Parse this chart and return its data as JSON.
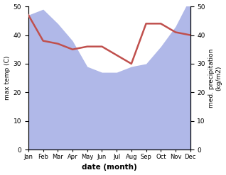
{
  "months": [
    "Jan",
    "Feb",
    "Mar",
    "Apr",
    "May",
    "Jun",
    "Jul",
    "Aug",
    "Sep",
    "Oct",
    "Nov",
    "Dec"
  ],
  "precipitation": [
    47,
    49,
    44,
    38,
    29,
    27,
    27,
    29,
    30,
    36,
    43,
    53
  ],
  "max_temp": [
    47,
    38,
    37,
    35,
    36,
    36,
    33,
    30,
    44,
    44,
    41,
    40
  ],
  "precip_color": "#b0b8e8",
  "temp_color": "#c0504d",
  "left_ylim": [
    0,
    50
  ],
  "right_ylim": [
    0,
    50
  ],
  "left_yticks": [
    0,
    10,
    20,
    30,
    40,
    50
  ],
  "right_yticks": [
    0,
    10,
    20,
    30,
    40,
    50
  ],
  "xlabel": "date (month)",
  "ylabel_left": "max temp (C)",
  "ylabel_right": "med. precipitation\n(kg/m2)",
  "title": ""
}
